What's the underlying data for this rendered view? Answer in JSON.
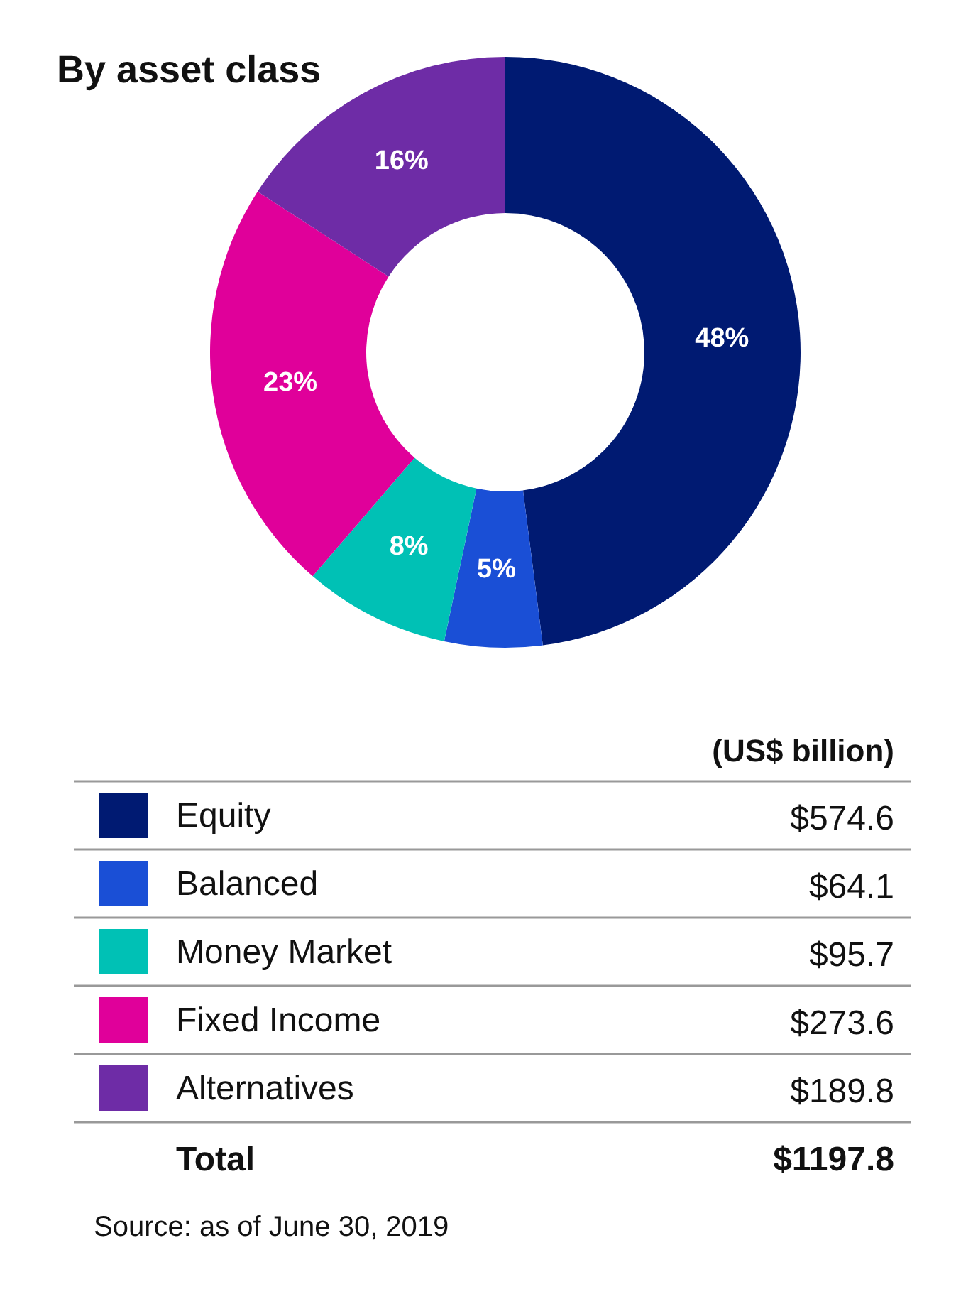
{
  "chart_data": {
    "type": "donut",
    "title": "By asset class",
    "legend_title": "(US$ billion)",
    "categories": [
      "Equity",
      "Balanced",
      "Money Market",
      "Fixed Income",
      "Alternatives"
    ],
    "values": [
      574.6,
      64.1,
      95.7,
      273.6,
      189.8
    ],
    "colors": [
      "#001a72",
      "#1a4fd6",
      "#00c1b5",
      "#e0009a",
      "#6e2ca6"
    ],
    "value_labels": [
      "$574.6",
      "$64.1",
      "$95.7",
      "$273.6",
      "$189.8"
    ],
    "totals": [
      "$1197.8"
    ],
    "legend": "bottom",
    "annotations": [
      {
        "text": "48%",
        "x": "Equity"
      },
      {
        "text": "5%",
        "x": "Balanced"
      },
      {
        "text": "8%",
        "x": "Money Market"
      },
      {
        "text": "23%",
        "x": "Fixed Income"
      },
      {
        "text": "16%",
        "x": "Alternatives"
      },
      "Total",
      "Source: as of June 30, 2019"
    ]
  }
}
